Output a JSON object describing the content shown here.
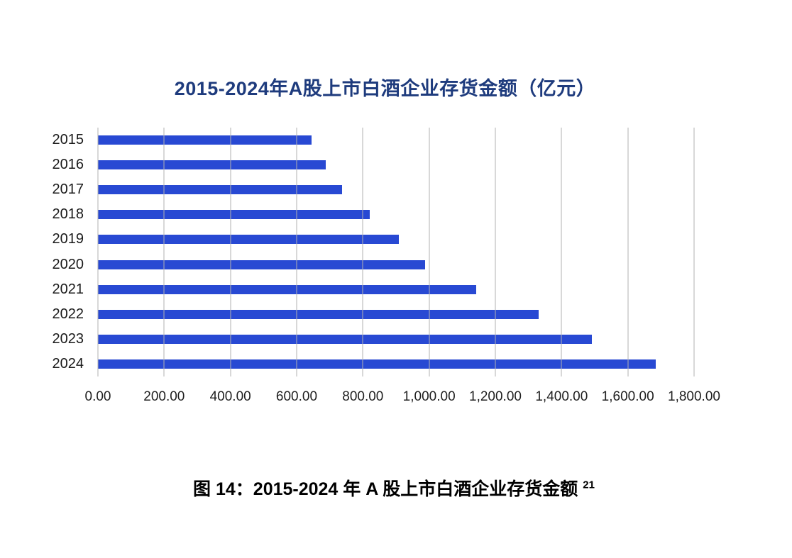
{
  "chart_data": {
    "type": "bar",
    "orientation": "horizontal",
    "title": "2015-2024年A股上市白酒企业存货金额（亿元）",
    "categories": [
      "2015",
      "2016",
      "2017",
      "2018",
      "2019",
      "2020",
      "2021",
      "2022",
      "2023",
      "2024"
    ],
    "values": [
      645,
      688,
      737,
      820,
      908,
      987,
      1143,
      1330,
      1492,
      1685
    ],
    "xlabel": "",
    "ylabel": "",
    "xlim": [
      0,
      1800
    ],
    "x_ticks": [
      0,
      200,
      400,
      600,
      800,
      1000,
      1200,
      1400,
      1600,
      1800
    ],
    "x_tick_labels": [
      "0.00",
      "200.00",
      "400.00",
      "600.00",
      "800.00",
      "1,000.00",
      "1,200.00",
      "1,400.00",
      "1,600.00",
      "1,800.00"
    ],
    "grid": "vertical",
    "legend": "none",
    "bar_color": "#2849d3",
    "gridline_color": "#d9d9d9",
    "title_color": "#1e3b7d"
  },
  "caption": {
    "text": "图 14：2015-2024 年 A 股上市白酒企业存货金额 ",
    "footnote_ref": "21"
  }
}
